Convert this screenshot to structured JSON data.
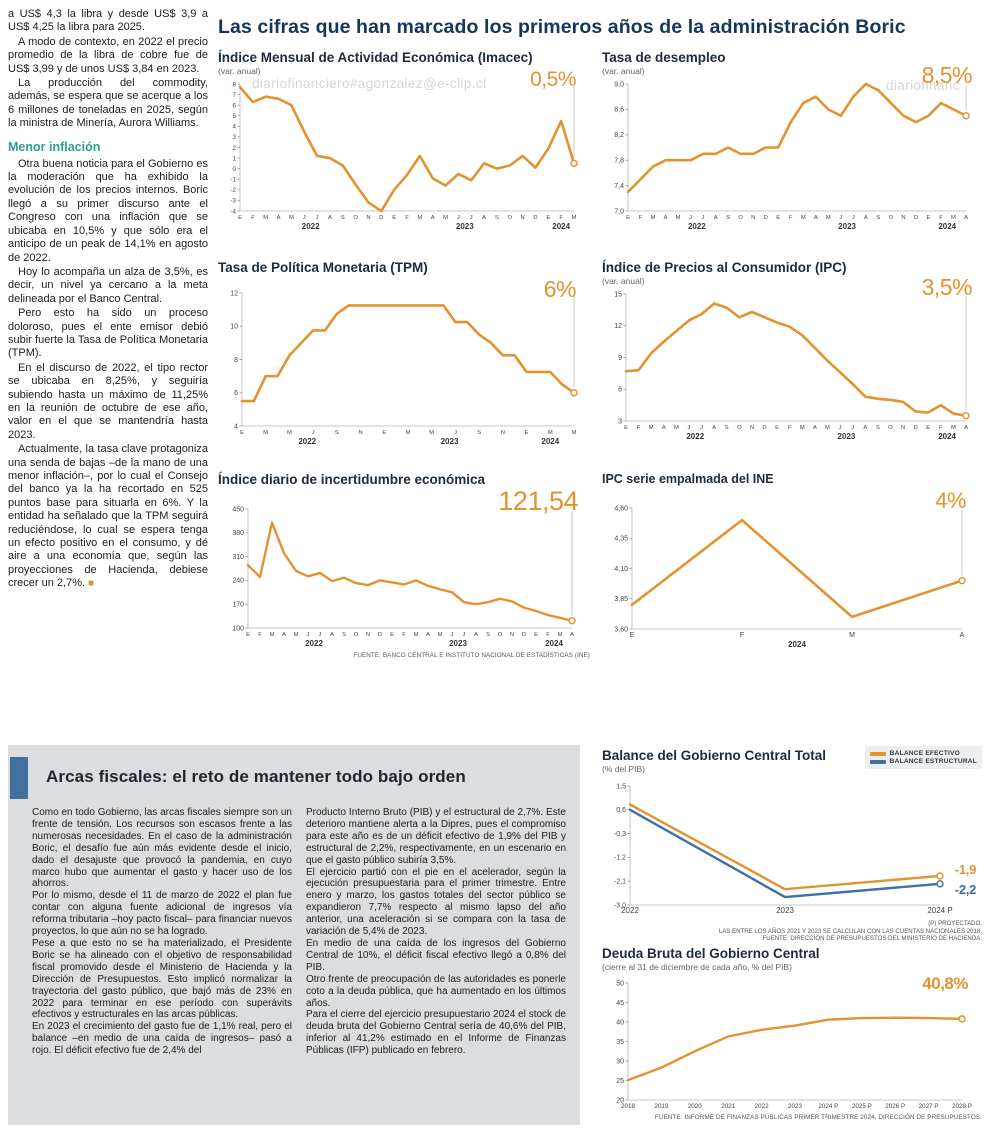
{
  "headline": "Las cifras que han marcado los primeros años de la administración Boric",
  "watermarks": {
    "w1": "diariofinanciero#agonzalez@e-clip.cl",
    "w2": "diariofinanc",
    "w3": "diariofinanciero#agonzalez@e-clip.cl"
  },
  "left_article": {
    "paragraphs": [
      "a US$ 4,3 la libra y desde US$ 3,9 a US$ 4,25 la libra para 2025.",
      "A modo de contexto, en 2022 el precio promedio de la libra de cobre fue de US$ 3,99 y de unos US$ 3,84 en 2023.",
      "La producción del commodity, además, se espera que se acerque a los 6 millones de toneladas en 2025, según la ministra de Minería, Aurora Williams."
    ],
    "subhead": "Menor inflación",
    "paragraphs2": [
      "Otra buena noticia para el Gobierno es la moderación que ha exhibido la evolución de los precios internos. Boric llegó a su primer discurso ante el Congreso con una inflación que se ubicaba en 10,5% y que sólo era el anticipo de un peak de 14,1% en agosto de 2022.",
      "Hoy lo acompaña un alza de 3,5%, es decir, un nivel ya cercano a la meta delineada por el Banco Central.",
      "Pero esto ha sido un proceso doloroso, pues el ente emisor debió subir fuerte la Tasa de Política Monetaria (TPM).",
      "En el discurso de 2022, el tipo rector se ubicaba en 8,25%, y seguiría subiendo hasta un máximo de 11,25% en la reunión de octubre de ese año, valor en el que se mantendría hasta 2023.",
      "Actualmente, la tasa clave protagoniza una senda de bajas –de la mano de una menor inflación–, por lo cual el Consejo del banco ya la ha recortado en 525 puntos base para situarla en 6%. Y la entidad ha señalado que la TPM seguirá reduciéndose, lo cual se espera tenga un efecto positivo en el consumo, y dé aire a una economía que, según las proyecciones de Hacienda, debiese crecer un 2,7%."
    ],
    "end_mark": "■"
  },
  "fiscal_box": {
    "title": "Arcas fiscales: el reto de mantener todo bajo orden",
    "col1": [
      "Como en todo Gobierno, las arcas fiscales siempre son un frente de tensión. Los recursos son escasos frente a las numerosas necesidades. En el caso de la administración Boric, el desafío fue aún más evidente desde el inicio, dado el desajuste que provocó la pandemia, en cuyo marco hubo que aumentar el gasto y hacer uso de los ahorros.",
      "Por lo mismo, desde el 11 de marzo de 2022 el plan fue contar con alguna fuente adicional de ingresos vía reforma tributaria –hoy pacto fiscal– para financiar nuevos proyectos, lo que aún no se ha logrado.",
      "Pese a que esto no se ha materializado, el Presidente Boric se ha alineado con el objetivo de responsabilidad fiscal promovido desde el Ministerio de Hacienda y la Dirección de Presupuestos. Esto implicó normalizar la trayectoria del gasto público, que bajó más de 23% en 2022 para terminar en ese período con superávits efectivos y estructurales en las arcas públicas.",
      "En 2023 el crecimiento del gasto fue de 1,1% real, pero el balance –en medio de una caída de ingresos– pasó a rojo. El déficit efectivo fue de 2,4% del"
    ],
    "col2": [
      "Producto Interno Bruto (PIB) y el estructural de 2,7%. Este deterioro mantiene alerta a la Dipres, pues el compromiso para este año es de un déficit efectivo de 1,9% del PIB y estructural de 2,2%, respectivamente, en un escenario en que el gasto público subiría 3,5%.",
      "El ejercicio partió con el pie en el acelerador, según la ejecución presupuestaria para el primer trimestre. Entre enero y marzo, los gastos totales del sector público se expandieron 7,7% respecto al mismo lapso del año anterior, una aceleración si se compara con la tasa de variación de 5,4% de 2023.",
      "En medio de una caída de los ingresos del Gobierno Central de 10%, el déficit fiscal efectivo llegó a 0,8% del PIB.",
      "Otro frente de preocupación de las autoridades es ponerle coto a la deuda pública, que ha aumentado en los últimos años.",
      "Para el cierre del ejercicio presupuestario 2024 el stock de deuda bruta del Gobierno Central sería de 40,6% del PIB, inferior al 41,2% estimado en el Informe de Finanzas Públicas (IFP) publicado en febrero."
    ]
  },
  "colors": {
    "orange": "#E2932F",
    "blue": "#3E6FA5",
    "navy": "#16365C",
    "teal": "#2E9E8F",
    "gray_box": "#DCDDDF",
    "accent_bar": "#436F9D"
  },
  "chart_data": [
    {
      "type": "line",
      "title": "Índice Mensual de Actividad Económica (Imacec)",
      "subtitle": "(var. anual)",
      "big_label": "0,5%",
      "ylim": [
        -4,
        8
      ],
      "yticks": [
        8,
        7,
        6,
        5,
        4,
        3,
        2,
        1,
        0,
        -1,
        -2,
        -3,
        -4
      ],
      "ytick_labels": [
        "8",
        "7",
        "6",
        "5",
        "4",
        "3",
        "2",
        "1",
        "0",
        "-1",
        "-2",
        "-3",
        "-4"
      ],
      "xlabels": [
        "E",
        "F",
        "M",
        "A",
        "M",
        "J",
        "J",
        "A",
        "S",
        "O",
        "N",
        "D",
        "E",
        "F",
        "M",
        "A",
        "M",
        "J",
        "J",
        "A",
        "S",
        "O",
        "N",
        "D",
        "E",
        "F",
        "M"
      ],
      "years": [
        {
          "label": "2022",
          "from": 0,
          "to": 11
        },
        {
          "label": "2023",
          "from": 12,
          "to": 23
        },
        {
          "label": "2024",
          "from": 24,
          "to": 26
        }
      ],
      "padL": 22,
      "padR": 16,
      "lw": 2.6,
      "ysize": 6.2,
      "guide": true,
      "series": [
        {
          "color": "#E2932F",
          "values": [
            7.7,
            6.3,
            6.8,
            6.6,
            6.0,
            3.5,
            1.2,
            1.0,
            0.3,
            -1.5,
            -3.2,
            -4.0,
            -2.0,
            -0.6,
            1.2,
            -0.9,
            -1.6,
            -0.5,
            -1.1,
            0.5,
            0.0,
            0.3,
            1.2,
            0.1,
            1.9,
            4.5,
            0.5
          ]
        }
      ]
    },
    {
      "type": "line",
      "title": "Tasa de desempleo",
      "subtitle": "(var. anual)",
      "big_label": "8,5%",
      "ylim": [
        7.0,
        9.0
      ],
      "yticks": [
        9.0,
        8.6,
        8.2,
        7.8,
        7.4,
        7.0
      ],
      "ytick_labels": [
        "9,0",
        "8,6",
        "8,2",
        "7,8",
        "7,4",
        "7,0"
      ],
      "xlabels": [
        "E",
        "F",
        "M",
        "A",
        "M",
        "J",
        "J",
        "A",
        "S",
        "O",
        "N",
        "D",
        "E",
        "F",
        "M",
        "A",
        "M",
        "J",
        "J",
        "A",
        "S",
        "O",
        "N",
        "D",
        "E",
        "F",
        "M",
        "A"
      ],
      "years": [
        {
          "label": "2022",
          "from": 0,
          "to": 11
        },
        {
          "label": "2023",
          "from": 12,
          "to": 23
        },
        {
          "label": "2024",
          "from": 24,
          "to": 27
        }
      ],
      "padL": 26,
      "padR": 16,
      "lw": 2.6,
      "ysize": 7,
      "guide": true,
      "series": [
        {
          "color": "#E2932F",
          "values": [
            7.3,
            7.5,
            7.7,
            7.8,
            7.8,
            7.8,
            7.9,
            7.9,
            8.0,
            7.9,
            7.9,
            8.0,
            8.0,
            8.4,
            8.7,
            8.8,
            8.6,
            8.5,
            8.8,
            9.0,
            8.9,
            8.7,
            8.5,
            8.4,
            8.5,
            8.7,
            8.6,
            8.5
          ]
        }
      ]
    },
    {
      "type": "line",
      "title": "Tasa de Política Monetaria (TPM)",
      "subtitle": "",
      "big_label": "6%",
      "ylim": [
        4,
        12
      ],
      "yticks": [
        12,
        10,
        8,
        6,
        4
      ],
      "ytick_labels": [
        "12",
        "10",
        "8",
        "6",
        "4"
      ],
      "xlabels": [
        "E",
        "",
        "M",
        "",
        "M",
        "",
        "J",
        "",
        "S",
        "",
        "N",
        "",
        "E",
        "",
        "M",
        "",
        "M",
        "",
        "J",
        "",
        "S",
        "",
        "N",
        "",
        "E",
        "",
        "M",
        "",
        "M"
      ],
      "years": [
        {
          "label": "2022",
          "from": 0,
          "to": 11
        },
        {
          "label": "2023",
          "from": 12,
          "to": 23
        },
        {
          "label": "2024",
          "from": 24,
          "to": 28
        }
      ],
      "padL": 24,
      "padR": 16,
      "lw": 2.6,
      "ysize": 7,
      "guide": true,
      "series": [
        {
          "color": "#E2932F",
          "values": [
            5.5,
            5.5,
            7.0,
            7.0,
            8.25,
            9.0,
            9.75,
            9.75,
            10.75,
            11.25,
            11.25,
            11.25,
            11.25,
            11.25,
            11.25,
            11.25,
            11.25,
            11.25,
            10.25,
            10.25,
            9.5,
            9.0,
            8.25,
            8.25,
            7.25,
            7.25,
            7.25,
            6.5,
            6.0
          ]
        }
      ]
    },
    {
      "type": "line",
      "title": "Índice de Precios al Consumidor (IPC)",
      "subtitle": "(var. anual)",
      "big_label": "3,5%",
      "ylim": [
        3,
        15
      ],
      "yticks": [
        15,
        12,
        9,
        6,
        3
      ],
      "ytick_labels": [
        "15",
        "12",
        "9",
        "6",
        "3"
      ],
      "xlabels": [
        "E",
        "F",
        "M",
        "A",
        "M",
        "J",
        "J",
        "A",
        "S",
        "O",
        "N",
        "D",
        "E",
        "F",
        "M",
        "A",
        "M",
        "J",
        "J",
        "A",
        "S",
        "O",
        "N",
        "D",
        "E",
        "F",
        "M",
        "A"
      ],
      "years": [
        {
          "label": "2022",
          "from": 0,
          "to": 11
        },
        {
          "label": "2023",
          "from": 12,
          "to": 23
        },
        {
          "label": "2024",
          "from": 24,
          "to": 27
        }
      ],
      "padL": 24,
      "padR": 16,
      "lw": 2.6,
      "ysize": 7,
      "guide": true,
      "series": [
        {
          "color": "#E2932F",
          "values": [
            7.7,
            7.8,
            9.4,
            10.5,
            11.5,
            12.5,
            13.1,
            14.1,
            13.7,
            12.8,
            13.3,
            12.8,
            12.3,
            11.9,
            11.1,
            9.9,
            8.7,
            7.6,
            6.5,
            5.3,
            5.1,
            5.0,
            4.8,
            3.9,
            3.8,
            4.5,
            3.7,
            3.5
          ]
        }
      ]
    },
    {
      "type": "line",
      "title": "Índice diario de incertidumbre económica",
      "subtitle": "",
      "big_label": "121,54",
      "ylim": [
        100,
        450
      ],
      "yticks": [
        450,
        380,
        310,
        240,
        170,
        100
      ],
      "ytick_labels": [
        "450",
        "380",
        "310",
        "240",
        "170",
        "100"
      ],
      "xlabels": [
        "E",
        "F",
        "M",
        "A",
        "M",
        "J",
        "J",
        "A",
        "S",
        "O",
        "N",
        "D",
        "E",
        "F",
        "M",
        "A",
        "M",
        "J",
        "J",
        "A",
        "S",
        "O",
        "N",
        "D",
        "E",
        "F",
        "M",
        "A"
      ],
      "years": [
        {
          "label": "2022",
          "from": 0,
          "to": 11
        },
        {
          "label": "2023",
          "from": 12,
          "to": 23
        },
        {
          "label": "2024",
          "from": 24,
          "to": 27
        }
      ],
      "padL": 30,
      "padR": 18,
      "lw": 2.4,
      "ysize": 7,
      "guide": true,
      "source": "FUENTE: BANCO CENTRAL E INSTITUTO NACIONAL DE ESTADÍSTICAS (INE)",
      "series": [
        {
          "color": "#E2932F",
          "values": [
            285,
            250,
            410,
            320,
            268,
            252,
            262,
            238,
            248,
            232,
            226,
            240,
            234,
            228,
            240,
            224,
            214,
            205,
            176,
            170,
            176,
            186,
            178,
            160,
            150,
            138,
            130,
            121.54
          ]
        }
      ]
    },
    {
      "type": "line",
      "title": "IPC serie empalmada del INE",
      "subtitle": "",
      "big_label": "4%",
      "ylim": [
        3.6,
        4.6
      ],
      "yticks": [
        4.6,
        4.35,
        4.1,
        3.85,
        3.6
      ],
      "ytick_labels": [
        "4,60",
        "4,35",
        "4,10",
        "3,85",
        "3,60"
      ],
      "xlabels": [
        "E",
        "F",
        "M",
        "A"
      ],
      "years": [
        {
          "label": "2024",
          "from": 0,
          "to": 3
        }
      ],
      "padL": 30,
      "padR": 20,
      "lw": 2.6,
      "ysize": 7,
      "xsize": 7,
      "guide": true,
      "series": [
        {
          "color": "#E2932F",
          "values": [
            3.8,
            4.5,
            3.7,
            4.0
          ]
        }
      ]
    },
    {
      "type": "line",
      "title": "Balance del Gobierno Central Total",
      "subtitle": "(% del PIB)",
      "ylim": [
        -3.0,
        1.5
      ],
      "yticks": [
        1.5,
        0.6,
        -0.3,
        -1.2,
        -2.1,
        -3.0
      ],
      "ytick_labels": [
        "1,5",
        "0,6",
        "-0,3",
        "-1,2",
        "-2,1",
        "-3,0"
      ],
      "xlabels": [
        "2022",
        "2023",
        "2024 P"
      ],
      "padL": 28,
      "padR": 42,
      "lw": 2.4,
      "ysize": 7,
      "xsize": 8,
      "guide": false,
      "notes": [
        "(P) PROYECTADO.",
        "LAS ENTRE LOS AÑOS 2021 Y 2023 SE CALCULAN CON LAS CUENTAS NACIONALES 2018.",
        "FUENTE: DIRECCIÓN DE PRESUPUESTOS DEL MINISTERIO DE HACIENDA."
      ],
      "series": [
        {
          "name": "BALANCE EFECTIVO",
          "color": "#E2932F",
          "end_label": "-1,9",
          "values": [
            0.8,
            -2.4,
            -1.9
          ]
        },
        {
          "name": "BALANCE ESTRUCTURAL",
          "color": "#3E6FA5",
          "end_label": "-2,2",
          "values": [
            0.6,
            -2.7,
            -2.2
          ]
        }
      ]
    },
    {
      "type": "line",
      "title": "Deuda Bruta del Gobierno Central",
      "subtitle": "(cierre al 31 de diciembre de cada año, % del PIB)",
      "big_label": "40,8%",
      "ylim": [
        20,
        50
      ],
      "yticks": [
        50,
        45,
        40,
        35,
        30,
        25,
        20
      ],
      "ytick_labels": [
        "50",
        "45",
        "40",
        "35",
        "30",
        "25",
        "20"
      ],
      "xlabels": [
        "2018",
        "2019",
        "2020",
        "2021",
        "2022",
        "2023",
        "2024 P",
        "2025 P",
        "2026 P",
        "2027 P",
        "2028 P"
      ],
      "padL": 26,
      "padR": 20,
      "lw": 2.4,
      "ysize": 7,
      "xsize": 6.3,
      "guide": false,
      "source": "FUENTE: INFORME DE FINANZAS PÚBLICAS PRIMER TRIMESTRE 2024, DIRECCIÓN DE PRESUPUESTOS.",
      "series": [
        {
          "color": "#E2932F",
          "values": [
            25.1,
            28.3,
            32.5,
            36.3,
            38.0,
            39.1,
            40.6,
            41.0,
            41.1,
            41.0,
            40.8
          ]
        }
      ]
    }
  ]
}
